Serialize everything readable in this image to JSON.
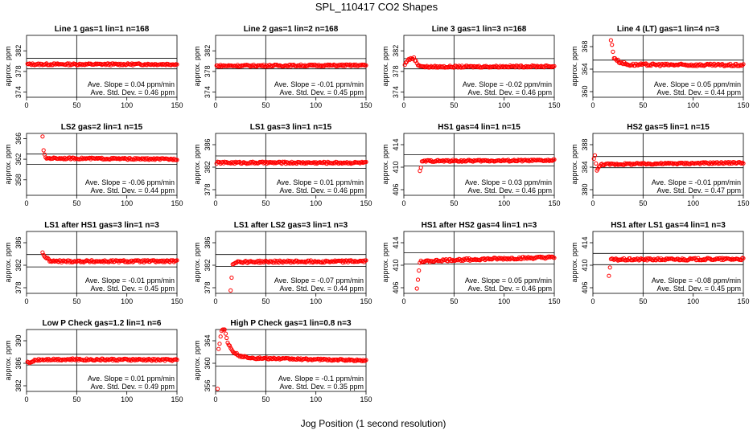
{
  "figure": {
    "title": "SPL_110417  CO2 Shapes",
    "xlabel": "Jog Position (1 second resolution)"
  },
  "colors": {
    "points": "#ff0000",
    "axes": "#000000",
    "background": "#ffffff"
  },
  "chart_data": [
    {
      "type": "scatter",
      "title": "Line 1 gas=1 lin=1 n=168",
      "ylabel": "approx. ppm",
      "xlim": [
        0,
        150
      ],
      "ylim": [
        373,
        385
      ],
      "xticks": [
        0,
        50,
        100,
        150
      ],
      "yticks": [
        374,
        378,
        382
      ],
      "vline": 50,
      "hlines": [
        380.55,
        378.5
      ],
      "curve": [
        [
          1,
          379.4
        ],
        [
          150,
          379.4
        ]
      ],
      "points_from": 1,
      "noise": 0.18,
      "slope": "Ave. Slope = 0.04  ppm/min",
      "std": "Ave. Std. Dev. = 0.46  ppm"
    },
    {
      "type": "scatter",
      "title": "Line 2 gas=1 lin=2 n=168",
      "ylabel": "approx. ppm",
      "xlim": [
        0,
        150
      ],
      "ylim": [
        373,
        385
      ],
      "xticks": [
        0,
        50,
        100,
        150
      ],
      "yticks": [
        374,
        378,
        382
      ],
      "vline": 50,
      "hlines": [
        380.5,
        378.5
      ],
      "curve": [
        [
          1,
          379.1
        ],
        [
          150,
          379.2
        ]
      ],
      "points_from": 1,
      "noise": 0.18,
      "slope": "Ave. Slope = -0.01  ppm/min",
      "std": "Ave. Std. Dev. = 0.45  ppm"
    },
    {
      "type": "scatter",
      "title": "Line 3 gas=1 lin=3 n=168",
      "ylabel": "approx. ppm",
      "xlim": [
        0,
        150
      ],
      "ylim": [
        373,
        385
      ],
      "xticks": [
        0,
        50,
        100,
        150
      ],
      "yticks": [
        374,
        378,
        382
      ],
      "vline": 50,
      "hlines": [
        380.5,
        378.5
      ],
      "curve": [
        [
          1,
          379.3
        ],
        [
          4,
          380.3
        ],
        [
          10,
          380.6
        ],
        [
          14,
          379.3
        ],
        [
          20,
          378.9
        ],
        [
          150,
          379.0
        ]
      ],
      "points_from": 1,
      "noise": 0.18,
      "slope": "Ave. Slope = -0.02  ppm/min",
      "std": "Ave. Std. Dev. = 0.46  ppm"
    },
    {
      "type": "scatter",
      "title": "Line 4 (LT) gas=1 lin=4 n=3",
      "ylabel": "approx. ppm",
      "xlim": [
        0,
        150
      ],
      "ylim": [
        359,
        370
      ],
      "xticks": [
        0,
        50,
        100,
        150
      ],
      "yticks": [
        360,
        364,
        368
      ],
      "vline": 50,
      "hlines": [
        365.6,
        363.5
      ],
      "curve": [
        [
          18,
          369.2
        ],
        [
          21,
          366.1
        ],
        [
          26,
          365.3
        ],
        [
          35,
          364.8
        ],
        [
          150,
          364.7
        ]
      ],
      "points_from": 18,
      "noise": 0.22,
      "slope": "Ave. Slope = 0.05  ppm/min",
      "std": "Ave. Std. Dev. = 0.44  ppm"
    },
    {
      "type": "scatter",
      "title": "LS2 gas=2 lin=1 n=15",
      "ylabel": "approx. ppm",
      "xlim": [
        0,
        150
      ],
      "ylim": [
        355,
        367
      ],
      "xticks": [
        0,
        50,
        100,
        150
      ],
      "yticks": [
        358,
        362,
        366
      ],
      "vline": 50,
      "hlines": [
        363.0,
        361.0
      ],
      "curve": [
        [
          16,
          366.5
        ],
        [
          17,
          363.6
        ],
        [
          19,
          362.2
        ],
        [
          150,
          362.0
        ]
      ],
      "points_from": 16,
      "noise": 0.16,
      "slope": "Ave. Slope = -0.06  ppm/min",
      "std": "Ave. Std. Dev. = 0.44  ppm"
    },
    {
      "type": "scatter",
      "title": "LS1 gas=3 lin=1 n=15",
      "ylabel": "approx. ppm",
      "xlim": [
        0,
        150
      ],
      "ylim": [
        377,
        388
      ],
      "xticks": [
        0,
        50,
        100,
        150
      ],
      "yticks": [
        378,
        382,
        386
      ],
      "vline": 50,
      "hlines": [
        384.0,
        381.8
      ],
      "curve": [
        [
          1,
          382.8
        ],
        [
          150,
          382.8
        ]
      ],
      "points_from": 1,
      "noise": 0.18,
      "slope": "Ave. Slope = 0.01  ppm/min",
      "std": "Ave. Std. Dev. = 0.46  ppm"
    },
    {
      "type": "scatter",
      "title": "HS1 gas=4 lin=1 n=15",
      "ylabel": "approx. ppm",
      "xlim": [
        0,
        150
      ],
      "ylim": [
        405,
        416
      ],
      "xticks": [
        0,
        50,
        100,
        150
      ],
      "yticks": [
        406,
        410,
        414
      ],
      "vline": 50,
      "hlines": [
        412.2,
        410.2
      ],
      "curve": [
        [
          16,
          409.2
        ],
        [
          18,
          410.9
        ],
        [
          21,
          411.1
        ],
        [
          150,
          411.2
        ]
      ],
      "points_from": 16,
      "noise": 0.16,
      "slope": "Ave. Slope = 0.03  ppm/min",
      "std": "Ave. Std. Dev. = 0.46  ppm"
    },
    {
      "type": "scatter",
      "title": "HS2 gas=5 lin=1 n=15",
      "ylabel": "approx. ppm",
      "xlim": [
        0,
        150
      ],
      "ylim": [
        379,
        390
      ],
      "xticks": [
        0,
        50,
        100,
        150
      ],
      "yticks": [
        380,
        384,
        388
      ],
      "vline": 50,
      "hlines": [
        385.9,
        383.9
      ],
      "curve": [
        [
          1,
          385.4
        ],
        [
          2,
          386.2
        ],
        [
          4,
          383.4
        ],
        [
          8,
          384.5
        ],
        [
          150,
          384.8
        ]
      ],
      "points_from": 1,
      "noise": 0.16,
      "slope": "Ave. Slope = -0.01  ppm/min",
      "std": "Ave. Std. Dev. = 0.47  ppm"
    },
    {
      "type": "scatter",
      "title": "LS1 after HS1 gas=3 lin=1 n=3",
      "ylabel": "approx. ppm",
      "xlim": [
        0,
        150
      ],
      "ylim": [
        377,
        388
      ],
      "xticks": [
        0,
        50,
        100,
        150
      ],
      "yticks": [
        378,
        382,
        386
      ],
      "vline": 50,
      "hlines": [
        383.9,
        381.7
      ],
      "curve": [
        [
          16,
          384.2
        ],
        [
          19,
          383.4
        ],
        [
          24,
          382.7
        ],
        [
          150,
          382.7
        ]
      ],
      "points_from": 16,
      "noise": 0.2,
      "slope": "Ave. Slope = -0.01  ppm/min",
      "std": "Ave. Std. Dev. = 0.45  ppm"
    },
    {
      "type": "scatter",
      "title": "LS1 after LS2 gas=3 lin=1 n=3",
      "ylabel": "approx. ppm",
      "xlim": [
        0,
        150
      ],
      "ylim": [
        377,
        388
      ],
      "xticks": [
        0,
        50,
        100,
        150
      ],
      "yticks": [
        378,
        382,
        386
      ],
      "vline": 50,
      "hlines": [
        383.9,
        381.8
      ],
      "curve": [
        [
          15,
          377.5
        ],
        [
          17,
          382.2
        ],
        [
          20,
          382.6
        ],
        [
          150,
          382.7
        ]
      ],
      "points_from": 15,
      "noise": 0.2,
      "slope": "Ave. Slope = -0.07  ppm/min",
      "std": "Ave. Std. Dev. = 0.44  ppm"
    },
    {
      "type": "scatter",
      "title": "HS1 after HS2 gas=4 lin=1 n=3",
      "ylabel": "approx. ppm",
      "xlim": [
        0,
        150
      ],
      "ylim": [
        405,
        416
      ],
      "xticks": [
        0,
        50,
        100,
        150
      ],
      "yticks": [
        406,
        410,
        414
      ],
      "vline": 50,
      "hlines": [
        412.2,
        410.2
      ],
      "curve": [
        [
          13,
          405.9
        ],
        [
          16,
          410.6
        ],
        [
          40,
          410.9
        ],
        [
          150,
          411.4
        ]
      ],
      "points_from": 13,
      "noise": 0.2,
      "slope": "Ave. Slope = 0.05  ppm/min",
      "std": "Ave. Std. Dev. = 0.46  ppm"
    },
    {
      "type": "scatter",
      "title": "HS1 after LS1 gas=4 lin=1 n=3",
      "ylabel": "approx. ppm",
      "xlim": [
        0,
        150
      ],
      "ylim": [
        405,
        416
      ],
      "xticks": [
        0,
        50,
        100,
        150
      ],
      "yticks": [
        406,
        410,
        414
      ],
      "vline": 50,
      "hlines": [
        412.1,
        410.1
      ],
      "curve": [
        [
          16,
          408.2
        ],
        [
          18,
          411.0
        ],
        [
          150,
          411.1
        ]
      ],
      "points_from": 16,
      "noise": 0.2,
      "slope": "Ave. Slope = -0.08  ppm/min",
      "std": "Ave. Std. Dev. = 0.45  ppm"
    },
    {
      "type": "scatter",
      "title": "Low P Check gas=1.2 lin=1 n=6",
      "ylabel": "approx. ppm",
      "xlim": [
        0,
        150
      ],
      "ylim": [
        381,
        392
      ],
      "xticks": [
        0,
        50,
        100,
        150
      ],
      "yticks": [
        382,
        386,
        390
      ],
      "vline": 50,
      "hlines": [
        387.6,
        385.7
      ],
      "curve": [
        [
          1,
          386.4
        ],
        [
          3,
          385.9
        ],
        [
          8,
          386.6
        ],
        [
          20,
          386.7
        ],
        [
          150,
          386.6
        ]
      ],
      "points_from": 1,
      "noise": 0.18,
      "slope": "Ave. Slope = 0.01  ppm/min",
      "std": "Ave. Std. Dev. = 0.49  ppm"
    },
    {
      "type": "scatter",
      "title": "High P Check gas=1 lin=0.8 n=3",
      "ylabel": "approx. ppm",
      "xlim": [
        0,
        150
      ],
      "ylim": [
        355,
        366
      ],
      "xticks": [
        0,
        50,
        100,
        150
      ],
      "yticks": [
        356,
        360,
        364
      ],
      "vline": 50,
      "hlines": [
        361.5,
        359.5
      ],
      "curve": [
        [
          2,
          355.6
        ],
        [
          3,
          362.5
        ],
        [
          6,
          365.8
        ],
        [
          9,
          366.2
        ],
        [
          12,
          363.6
        ],
        [
          18,
          362.0
        ],
        [
          25,
          361.2
        ],
        [
          40,
          360.9
        ],
        [
          150,
          360.5
        ]
      ],
      "points_from": 2,
      "noise": 0.15,
      "slope": "Ave. Slope = -0.1  ppm/min",
      "std": "Ave. Std. Dev. = 0.35  ppm"
    }
  ]
}
